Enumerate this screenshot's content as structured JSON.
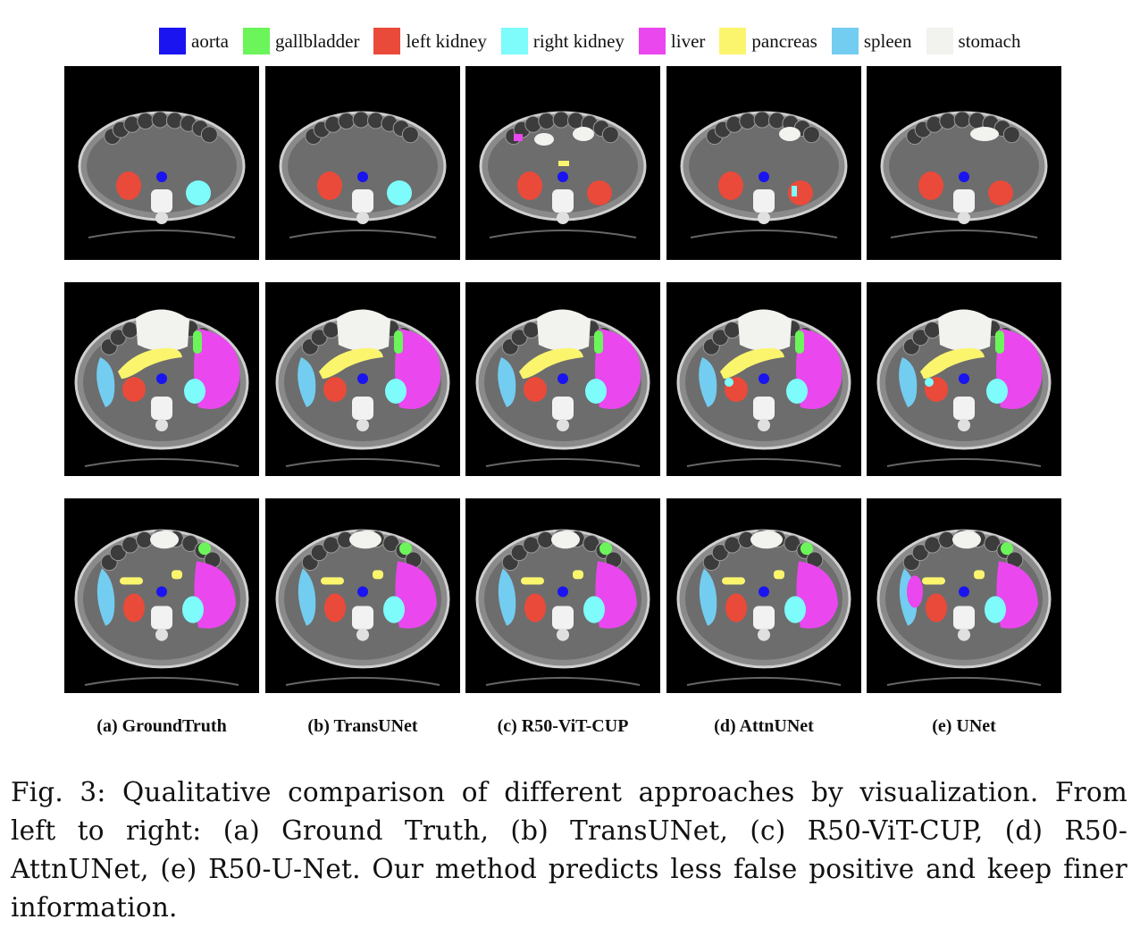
{
  "legend": [
    {
      "label": "aorta",
      "color": "#1a14f0"
    },
    {
      "label": "gallbladder",
      "color": "#6cf55a"
    },
    {
      "label": "left kidney",
      "color": "#ea4a3a"
    },
    {
      "label": "right kidney",
      "color": "#7efbfb"
    },
    {
      "label": "liver",
      "color": "#ea47ef"
    },
    {
      "label": "pancreas",
      "color": "#fbf56e"
    },
    {
      "label": "spleen",
      "color": "#73cdf0"
    },
    {
      "label": "stomach",
      "color": "#f2f2ee"
    }
  ],
  "columns": [
    {
      "label": "(a) GroundTruth"
    },
    {
      "label": "(b) TransUNet"
    },
    {
      "label": "(c) R50-ViT-CUP"
    },
    {
      "label": "(d) AttnUNet"
    },
    {
      "label": "(e) UNet"
    }
  ],
  "caption": {
    "lines": [
      "Fig. 3: Qualitative comparison of different approaches by visualization. From",
      "left to right: (a) Ground Truth, (b) TransUNet, (c) R50-ViT-CUP, (d) R50-",
      "AttnUNet, (e) R50-U-Net. Our method predicts less false positive and keep finer",
      "information."
    ]
  }
}
